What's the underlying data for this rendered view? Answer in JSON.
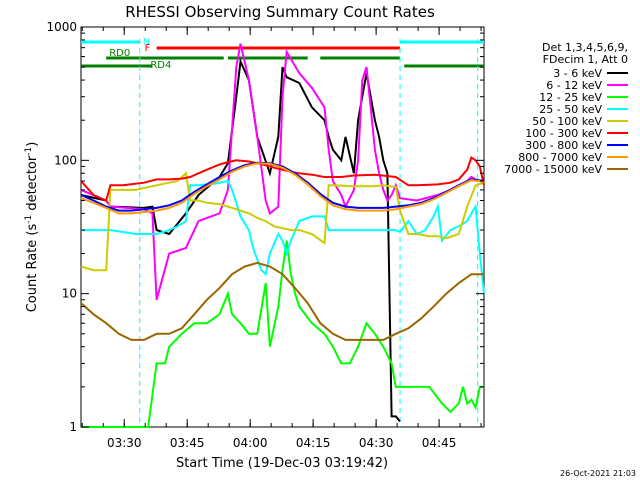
{
  "chart_data": {
    "type": "line",
    "title": "RHESSI Observing Summary Count Rates",
    "ylabel": "Count Rate (s⁻¹ detector⁻¹)",
    "ylabel_parts": [
      "Count Rate (s",
      "-1",
      " detector",
      "-1",
      ")"
    ],
    "xlabel": "Start Time (19-Dec-03 03:19:42)",
    "y_scale": "log",
    "ylim": [
      1,
      1000
    ],
    "xlim_minutes": [
      0,
      96
    ],
    "y_ticks": [
      {
        "value": 1,
        "label": "1"
      },
      {
        "value": 10,
        "label": "10"
      },
      {
        "value": 100,
        "label": "100"
      },
      {
        "value": 1000,
        "label": "1000"
      }
    ],
    "x_ticks": [
      {
        "minute": 10.3,
        "label": "03:30"
      },
      {
        "minute": 25.3,
        "label": "03:45"
      },
      {
        "minute": 40.3,
        "label": "04:00"
      },
      {
        "minute": 55.3,
        "label": "04:15"
      },
      {
        "minute": 70.3,
        "label": "04:30"
      },
      {
        "minute": 85.3,
        "label": "04:45"
      }
    ],
    "legend_header": [
      "Det 1,3,4,5,6,9,",
      "FDecim 1, Att 0"
    ],
    "series": [
      {
        "name": "3 - 6 keV",
        "color": "#000000",
        "x": [
          0,
          6,
          7,
          15,
          17,
          18,
          21,
          25,
          28,
          33,
          35,
          37,
          38,
          40,
          42,
          45,
          47,
          48,
          49,
          52,
          55,
          58,
          59,
          60,
          62,
          63,
          65,
          66,
          67,
          68,
          69,
          70,
          71,
          72,
          73,
          74,
          75,
          76
        ],
        "values": [
          55,
          50,
          45,
          44,
          45,
          30,
          28,
          40,
          55,
          75,
          95,
          300,
          550,
          400,
          150,
          80,
          150,
          500,
          420,
          380,
          250,
          200,
          150,
          120,
          100,
          150,
          80,
          200,
          300,
          450,
          300,
          200,
          150,
          100,
          80,
          1.2,
          1.2,
          1.1
        ]
      },
      {
        "name": "6 - 12 keV",
        "color": "#ff00ff",
        "x": [
          0,
          6,
          7,
          15,
          17,
          18,
          21,
          25,
          28,
          33,
          35,
          37,
          38,
          40,
          42,
          44,
          45,
          47,
          48,
          49,
          52,
          55,
          58,
          59,
          60,
          62,
          63,
          65,
          66,
          67,
          68,
          69,
          70,
          71,
          72,
          73,
          74,
          75,
          76,
          80,
          85,
          88,
          90,
          92,
          93,
          94,
          95
        ],
        "values": [
          60,
          50,
          45,
          43,
          40,
          9,
          20,
          22,
          35,
          40,
          60,
          500,
          750,
          400,
          150,
          50,
          40,
          45,
          300,
          650,
          450,
          350,
          250,
          120,
          70,
          55,
          45,
          60,
          100,
          400,
          500,
          250,
          120,
          80,
          60,
          50,
          55,
          65,
          52,
          50,
          55,
          60,
          65,
          70,
          75,
          72,
          70
        ]
      },
      {
        "name": "12 - 25 keV",
        "color": "#00ff00",
        "x": [
          0,
          15,
          16,
          18,
          20,
          21,
          24,
          27,
          30,
          33,
          35,
          36,
          38,
          40,
          42,
          44,
          45,
          47,
          48,
          49,
          50,
          51,
          52,
          55,
          58,
          60,
          62,
          64,
          66,
          68,
          70,
          72,
          74,
          75,
          76,
          78,
          80,
          83,
          86,
          88,
          90,
          91,
          92,
          93,
          94,
          95,
          96
        ],
        "values": [
          1,
          1,
          1,
          3,
          3,
          4,
          5,
          6,
          6,
          7,
          10,
          7,
          6,
          5,
          5,
          12,
          4,
          8,
          15,
          25,
          14,
          10,
          8,
          6,
          5,
          4,
          3,
          3,
          4,
          6,
          5,
          4,
          3,
          2,
          2,
          2,
          2,
          2,
          1.5,
          1.3,
          1.5,
          2,
          1.5,
          1.6,
          1.4,
          2,
          2
        ]
      },
      {
        "name": "25 - 50 keV",
        "color": "#00ffff",
        "x": [
          0,
          3,
          6,
          7,
          10,
          13,
          15,
          18,
          21,
          23,
          25,
          26,
          28,
          30,
          31,
          33,
          35,
          36,
          37,
          38,
          40,
          41,
          42,
          43,
          44,
          45,
          47,
          48,
          49,
          50,
          52,
          55,
          58,
          59,
          60,
          65,
          70,
          75,
          76,
          78,
          80,
          82,
          84,
          85,
          86,
          88,
          90,
          92,
          93,
          94,
          95,
          96
        ],
        "values": [
          30,
          30,
          30,
          30,
          29,
          28,
          28,
          28,
          30,
          32,
          35,
          65,
          65,
          66,
          66,
          68,
          70,
          60,
          48,
          38,
          30,
          22,
          18,
          15,
          14,
          20,
          28,
          25,
          20,
          25,
          35,
          38,
          38,
          30,
          30,
          30,
          30,
          30,
          29,
          35,
          28,
          30,
          38,
          45,
          25,
          30,
          32,
          35,
          40,
          45,
          20,
          10
        ]
      },
      {
        "name": "50 - 100 keV",
        "color": "#cccc00",
        "x": [
          0,
          3,
          6,
          7,
          10,
          13,
          15,
          18,
          21,
          23,
          25,
          26,
          28,
          30,
          33,
          35,
          38,
          40,
          42,
          44,
          46,
          48,
          50,
          52,
          55,
          58,
          59,
          60,
          65,
          70,
          72,
          75,
          76,
          78,
          80,
          83,
          85,
          87,
          90,
          92,
          94,
          96
        ],
        "values": [
          16,
          15,
          15,
          60,
          60,
          60,
          62,
          65,
          68,
          70,
          80,
          50,
          50,
          48,
          47,
          45,
          42,
          40,
          37,
          35,
          32,
          31,
          30,
          30,
          28,
          24,
          65,
          65,
          64,
          64,
          65,
          63,
          42,
          28,
          28,
          27,
          27,
          26,
          28,
          45,
          65,
          68
        ]
      },
      {
        "name": "100 - 300 keV",
        "color": "#ff0000",
        "x": [
          0,
          3,
          6,
          7,
          10,
          15,
          18,
          21,
          24,
          26,
          28,
          30,
          33,
          35,
          37,
          40,
          42,
          44,
          46,
          48,
          50,
          52,
          55,
          58,
          60,
          62,
          65,
          70,
          75,
          78,
          80,
          85,
          88,
          90,
          92,
          93,
          94,
          95,
          96
        ],
        "values": [
          70,
          55,
          50,
          65,
          65,
          68,
          72,
          72,
          73,
          75,
          80,
          85,
          93,
          97,
          100,
          98,
          95,
          92,
          88,
          85,
          82,
          80,
          78,
          75,
          75,
          75,
          77,
          78,
          75,
          65,
          65,
          66,
          68,
          72,
          85,
          105,
          100,
          90,
          65
        ]
      },
      {
        "name": "300 - 800 keV",
        "color": "#0000ff",
        "x": [
          0,
          3,
          6,
          9,
          12,
          15,
          18,
          21,
          24,
          27,
          30,
          33,
          36,
          39,
          42,
          45,
          48,
          51,
          54,
          57,
          60,
          63,
          66,
          69,
          72,
          75,
          78,
          81,
          84,
          87,
          90,
          93,
          96
        ],
        "values": [
          55,
          50,
          45,
          42,
          42,
          43,
          44,
          46,
          50,
          58,
          66,
          75,
          84,
          92,
          96,
          95,
          90,
          80,
          68,
          56,
          48,
          45,
          44,
          44,
          44,
          45,
          46,
          48,
          52,
          58,
          65,
          72,
          70
        ]
      },
      {
        "name": "800 - 7000 keV",
        "color": "#ff9900",
        "x": [
          0,
          3,
          6,
          9,
          12,
          15,
          18,
          21,
          24,
          27,
          30,
          33,
          36,
          39,
          42,
          45,
          48,
          51,
          54,
          57,
          60,
          63,
          66,
          69,
          72,
          75,
          78,
          81,
          84,
          87,
          90,
          93,
          96
        ],
        "values": [
          52,
          48,
          44,
          40,
          40,
          41,
          42,
          44,
          48,
          56,
          64,
          72,
          82,
          90,
          95,
          94,
          88,
          78,
          66,
          54,
          46,
          43,
          42,
          42,
          42,
          43,
          45,
          47,
          51,
          57,
          64,
          71,
          69
        ]
      },
      {
        "name": "7000 - 15000 keV",
        "color": "#996600",
        "x": [
          0,
          3,
          6,
          9,
          12,
          15,
          18,
          21,
          24,
          27,
          30,
          33,
          36,
          39,
          42,
          45,
          48,
          51,
          54,
          57,
          60,
          63,
          66,
          69,
          72,
          75,
          78,
          81,
          84,
          87,
          90,
          93,
          96
        ],
        "values": [
          8.5,
          7,
          6,
          5,
          4.5,
          4.5,
          5,
          5,
          5.5,
          7,
          9,
          11,
          14,
          16,
          17,
          16,
          14,
          11,
          8.5,
          6,
          5,
          4.5,
          4.5,
          4.5,
          4.5,
          5,
          5.5,
          6.5,
          8,
          10,
          12,
          14,
          14
        ]
      }
    ],
    "flags": [
      {
        "label": "N",
        "color": "#00ffff",
        "segments": [
          [
            0,
            14
          ]
        ],
        "level": 0
      },
      {
        "label": "N",
        "color": "#00ffff",
        "segments": [
          [
            76,
            96
          ]
        ],
        "level": 0
      },
      {
        "label": "F",
        "color": "#ff0000",
        "segments": [
          [
            18,
            76
          ]
        ],
        "level": 1
      },
      {
        "label": "RD0",
        "color": "#008000",
        "segments": [
          [
            6,
            34
          ],
          [
            35,
            54
          ],
          [
            57,
            76
          ]
        ],
        "level": 2
      },
      {
        "label": "RD4",
        "color": "#008000",
        "segments": [
          [
            0,
            17
          ],
          [
            77,
            96
          ]
        ],
        "level": 3
      }
    ],
    "vlines": [
      {
        "minute": 14,
        "color": "#00ffff"
      },
      {
        "minute": 76,
        "color": "#00ffff"
      },
      {
        "minute": 94.5,
        "color": "#00ffff"
      }
    ]
  },
  "footer": {
    "timestamp": "26-Oct-2021 21:03"
  }
}
